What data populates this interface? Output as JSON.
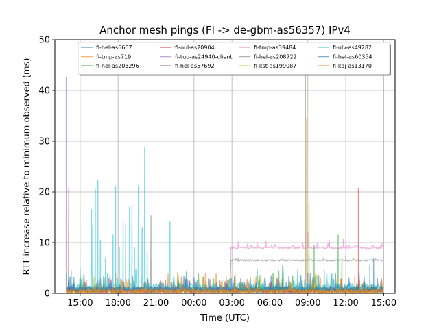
{
  "chart_data": {
    "type": "line",
    "title": "Anchor mesh pings (FI -> de-gbm-as56357) IPv4",
    "xlabel": "Time (UTC)",
    "ylabel": "RTT increase relative to minimum observed (ms)",
    "x_ticks": [
      "15:00",
      "18:00",
      "21:00",
      "00:00",
      "03:00",
      "06:00",
      "09:00",
      "12:00",
      "15:00"
    ],
    "x_tick_hours": [
      15,
      18,
      21,
      24,
      27,
      30,
      33,
      36,
      39
    ],
    "xlim_hours": [
      13.0,
      39.9
    ],
    "ylim": [
      0,
      50
    ],
    "y_ticks": [
      0,
      10,
      20,
      30,
      40,
      50
    ],
    "grid": true,
    "legend_placement": "top-center",
    "legend_columns": 4,
    "series": [
      {
        "name": "fi-hel-as6667",
        "color": "#1f77b4",
        "baseline": 0.8,
        "noise": 1.2,
        "spikes": [
          [
            14.1,
            2.5
          ],
          [
            28.0,
            2.2
          ],
          [
            33.2,
            3.8
          ],
          [
            37.9,
            5.5
          ]
        ]
      },
      {
        "name": "fi-tmp-as719",
        "color": "#ff7f0e",
        "baseline": 0.6,
        "noise": 1.4,
        "spikes": [
          [
            15.5,
            2.5
          ],
          [
            33.6,
            3.8
          ],
          [
            36.7,
            3.5
          ]
        ]
      },
      {
        "name": "fi-hel-as203296",
        "color": "#2ca02c",
        "baseline": 0.7,
        "noise": 1.3,
        "spikes": [
          [
            31.0,
            5.5
          ],
          [
            35.4,
            11.5
          ],
          [
            35.7,
            7.0
          ],
          [
            33.5,
            9.5
          ]
        ]
      },
      {
        "name": "fi-oul-as20904",
        "color": "#d62728",
        "baseline": 0.5,
        "noise": 1.0,
        "spikes": [
          [
            14.1,
            20.8
          ],
          [
            37.0,
            20.7
          ]
        ]
      },
      {
        "name": "fi-tuu-as24940-client",
        "color": "#9467bd",
        "baseline": 0.6,
        "noise": 1.0,
        "spikes": [
          [
            13.9,
            42.5
          ],
          [
            33.0,
            4.0
          ]
        ]
      },
      {
        "name": "fi-hel-as57692",
        "color": "#8c564b",
        "baseline": 0.5,
        "noise": 1.0,
        "spikes": [
          [
            32.8,
            44.0
          ]
        ]
      },
      {
        "name": "fi-tmp-as39484",
        "color": "#e377c2",
        "baseline": 9.0,
        "start": 26.9,
        "end": 38.9,
        "noise": 0.4,
        "spikes": [
          [
            27.5,
            10.2
          ],
          [
            29.7,
            10.3
          ],
          [
            33.0,
            12.0
          ],
          [
            34.7,
            10.5
          ],
          [
            35.8,
            10.6
          ]
        ]
      },
      {
        "name": "fi-hel-as208722",
        "color": "#7f7f7f",
        "baseline": 6.5,
        "start": 26.9,
        "end": 38.9,
        "noise": 0.3,
        "spikes": [
          [
            20.6,
            15.3
          ],
          [
            33.1,
            7.5
          ],
          [
            36.0,
            7.4
          ]
        ]
      },
      {
        "name": "fi-kst-as199087",
        "color": "#bcbd22",
        "baseline": 0.5,
        "noise": 1.1,
        "spikes": [
          [
            32.9,
            34.5
          ],
          [
            33.1,
            18.0
          ]
        ]
      },
      {
        "name": "fi-ulv-as49282",
        "color": "#17becf",
        "baseline": 1.2,
        "noise": 1.5,
        "spikes": [
          [
            15.9,
            16.5
          ],
          [
            16.2,
            20.5
          ],
          [
            16.4,
            22.3
          ],
          [
            16.6,
            10.5
          ],
          [
            16.0,
            13.2
          ],
          [
            17.6,
            11.5
          ],
          [
            17.8,
            21.0
          ],
          [
            18.1,
            9.0
          ],
          [
            18.4,
            14.0
          ],
          [
            18.6,
            13.5
          ],
          [
            18.9,
            17.0
          ],
          [
            19.1,
            17.6
          ],
          [
            19.3,
            9.0
          ],
          [
            19.6,
            21.2
          ],
          [
            19.9,
            13.0
          ],
          [
            20.1,
            28.7
          ],
          [
            20.3,
            8.0
          ],
          [
            22.1,
            14.1
          ],
          [
            14.3,
            4.5
          ],
          [
            15.0,
            5.0
          ],
          [
            17.0,
            7.0
          ]
        ]
      },
      {
        "name": "fi-hel-as60354",
        "color": "#1f77b4",
        "baseline": 0.9,
        "noise": 1.0,
        "spikes": [
          [
            34.3,
            4.5
          ],
          [
            35.2,
            3.8
          ],
          [
            38.2,
            6.8
          ]
        ]
      },
      {
        "name": "fi-kaj-as13170",
        "color": "#ff7f0e",
        "baseline": 0.4,
        "noise": 0.9,
        "spikes": [
          [
            23.0,
            3.2
          ],
          [
            35.6,
            2.8
          ]
        ]
      }
    ]
  }
}
